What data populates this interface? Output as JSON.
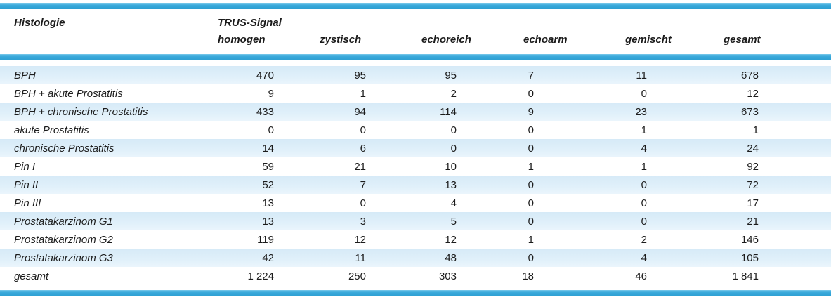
{
  "table": {
    "histologie_header": "Histologie",
    "signal_group_header": "TRUS-Signal",
    "signal_columns": [
      "homogen",
      "zystisch",
      "echoreich",
      "echoarm",
      "gemischt",
      "gesamt"
    ],
    "rows": [
      {
        "label": "BPH",
        "values": [
          "470",
          "95",
          "95",
          "7",
          "11",
          "678"
        ]
      },
      {
        "label": "BPH + akute Prostatitis",
        "values": [
          "9",
          "1",
          "2",
          "0",
          "0",
          "12"
        ]
      },
      {
        "label": "BPH + chronische Prostatitis",
        "values": [
          "433",
          "94",
          "114",
          "9",
          "23",
          "673"
        ]
      },
      {
        "label": "akute Prostatitis",
        "values": [
          "0",
          "0",
          "0",
          "0",
          "1",
          "1"
        ]
      },
      {
        "label": "chronische Prostatitis",
        "values": [
          "14",
          "6",
          "0",
          "0",
          "4",
          "24"
        ]
      },
      {
        "label": "Pin I",
        "values": [
          "59",
          "21",
          "10",
          "1",
          "1",
          "92"
        ]
      },
      {
        "label": "Pin II",
        "values": [
          "52",
          "7",
          "13",
          "0",
          "0",
          "72"
        ]
      },
      {
        "label": "Pin III",
        "values": [
          "13",
          "0",
          "4",
          "0",
          "0",
          "17"
        ]
      },
      {
        "label": "Prostatakarzinom G1",
        "values": [
          "13",
          "3",
          "5",
          "0",
          "0",
          "21"
        ]
      },
      {
        "label": "Prostatakarzinom G2",
        "values": [
          "119",
          "12",
          "12",
          "1",
          "2",
          "146"
        ]
      },
      {
        "label": "Prostatakarzinom G3",
        "values": [
          "42",
          "11",
          "48",
          "0",
          "4",
          "105"
        ]
      },
      {
        "label": "gesamt",
        "values": [
          "1 224",
          "250",
          "303",
          "18",
          "46",
          "1 841"
        ]
      }
    ]
  },
  "colors": {
    "accent_cyan": "#38a8da",
    "row_stripe": "#dceef9",
    "text": "#1c1c1c"
  }
}
